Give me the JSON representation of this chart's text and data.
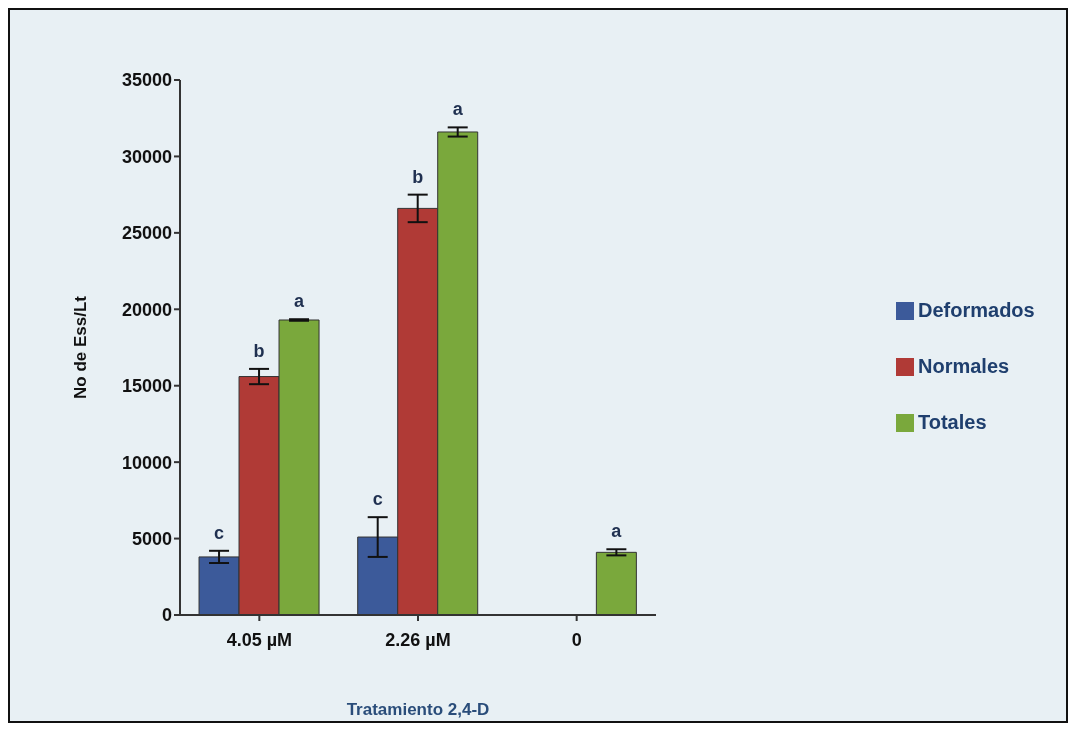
{
  "chart_data": {
    "type": "bar",
    "xlabel": "Tratamiento 2,4-D",
    "ylabel": "No de Ess/Lt",
    "categories": [
      "4.05  µM",
      "2.26 µM",
      "0"
    ],
    "series": [
      {
        "name": "Deformados",
        "color": "#3c5a9a",
        "values": [
          3800,
          5100,
          null
        ],
        "errors": [
          400,
          1300,
          null
        ]
      },
      {
        "name": "Normales",
        "color": "#b03a36",
        "values": [
          15600,
          26600,
          null
        ],
        "errors": [
          500,
          900,
          null
        ]
      },
      {
        "name": "Totales",
        "color": "#7aa83c",
        "values": [
          19300,
          31600,
          4100
        ],
        "errors": [
          50,
          300,
          200
        ]
      }
    ],
    "ylim": [
      0,
      35000
    ],
    "yticks": [
      0,
      5000,
      10000,
      15000,
      20000,
      25000,
      30000,
      35000
    ],
    "grid": false,
    "legend": "right",
    "annotations": [
      "c",
      "b",
      "a",
      "c",
      "b",
      "a",
      "a"
    ]
  }
}
